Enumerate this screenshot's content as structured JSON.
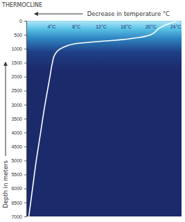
{
  "chart_data": {
    "type": "line",
    "title": "THERMOCLINE",
    "x_label": "Decrease in temperature °C",
    "y_label": "Depth in meters",
    "x": [
      24.5,
      23,
      21.5,
      20,
      18,
      14,
      11,
      8.5,
      6.5,
      5.5,
      4.5,
      4.2,
      3.8,
      3.4,
      3.0,
      2.3,
      1.6,
      1.0,
      0.4
    ],
    "values": [
      0,
      100,
      250,
      500,
      600,
      700,
      750,
      800,
      900,
      1000,
      1250,
      1500,
      2000,
      2500,
      3000,
      4000,
      5000,
      6000,
      7000
    ],
    "color": "#ffffff",
    "xlim": [
      0,
      25
    ],
    "xticks": [
      {
        "value": 4,
        "label": "4°C"
      },
      {
        "value": 8,
        "label": "8°C"
      },
      {
        "value": 12,
        "label": "12°C"
      },
      {
        "value": 16,
        "label": "16°C"
      },
      {
        "value": 20,
        "label": "20°C"
      },
      {
        "value": 24,
        "label": "24°C"
      }
    ],
    "ylim": [
      0,
      7000
    ],
    "yticks": [
      0,
      500,
      1000,
      1500,
      2000,
      2500,
      3000,
      3500,
      4000,
      4500,
      5000,
      5500,
      6000,
      6500,
      7000
    ],
    "grid": false
  }
}
